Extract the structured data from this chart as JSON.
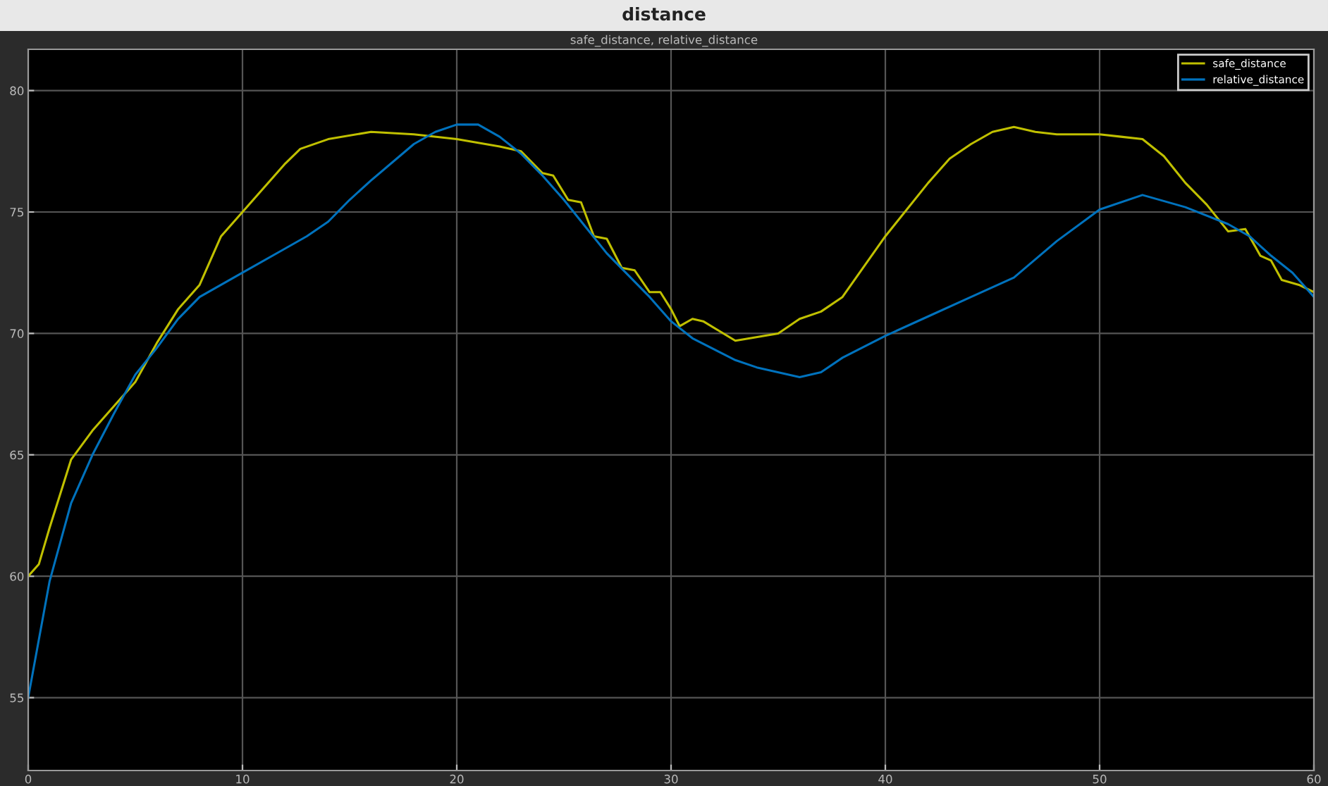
{
  "chart_data": {
    "type": "line",
    "title": "distance",
    "subtitle": "safe_distance, relative_distance",
    "xlim": [
      0,
      60
    ],
    "xticks": [
      0,
      10,
      20,
      30,
      40,
      50,
      60
    ],
    "ylim": [
      52,
      81.7
    ],
    "yticks": [
      55,
      60,
      65,
      70,
      75,
      80
    ],
    "grid": true,
    "legend": "top right",
    "line_style": "solid",
    "marker": "none",
    "series": [
      {
        "name": "safe_distance",
        "color": "#c0c000",
        "x": [
          0,
          0.5,
          1,
          1.5,
          2,
          3,
          4,
          5,
          6,
          7,
          8,
          9,
          10,
          11,
          12,
          12.7,
          14,
          16,
          18,
          20,
          22,
          23,
          24,
          24.5,
          25.2,
          25.8,
          26.4,
          27,
          27.7,
          28.3,
          29,
          29.5,
          30,
          30.4,
          31,
          31.5,
          33,
          35,
          36,
          37,
          38,
          40,
          42,
          43,
          44,
          45,
          46,
          47,
          48,
          50,
          51,
          52,
          53,
          54,
          55,
          56,
          56.8,
          57.5,
          58,
          58.5,
          59.3,
          60
        ],
        "values": [
          60,
          60.5,
          62,
          63.4,
          64.8,
          66,
          67,
          68,
          69.6,
          71,
          72,
          74,
          75,
          76,
          77,
          77.6,
          78,
          78.3,
          78.2,
          78,
          77.7,
          77.5,
          76.6,
          76.5,
          75.5,
          75.4,
          74,
          73.9,
          72.7,
          72.6,
          71.7,
          71.7,
          71,
          70.3,
          70.6,
          70.5,
          69.7,
          70,
          70.6,
          70.9,
          71.5,
          74,
          76.2,
          77.2,
          77.8,
          78.3,
          78.5,
          78.3,
          78.2,
          78.2,
          78.1,
          78,
          77.3,
          76.2,
          75.3,
          74.2,
          74.3,
          73.2,
          73,
          72.2,
          72,
          71.7
        ]
      },
      {
        "name": "relative_distance",
        "color": "#0072bd",
        "x": [
          0,
          1,
          2,
          3,
          4,
          5,
          6,
          7,
          8,
          10,
          12,
          13,
          14,
          15,
          16,
          18,
          19,
          20,
          21,
          22,
          23,
          24,
          25,
          26,
          27,
          28,
          29,
          30,
          31,
          33,
          34,
          36,
          37,
          38,
          40,
          42,
          44,
          46,
          48,
          50,
          52,
          54,
          56,
          57,
          58,
          59,
          60
        ],
        "values": [
          55,
          59.8,
          63,
          65,
          66.7,
          68.3,
          69.4,
          70.6,
          71.5,
          72.5,
          73.5,
          74,
          74.6,
          75.5,
          76.3,
          77.8,
          78.3,
          78.6,
          78.6,
          78.1,
          77.4,
          76.5,
          75.5,
          74.4,
          73.3,
          72.4,
          71.5,
          70.5,
          69.8,
          68.9,
          68.6,
          68.2,
          68.4,
          69,
          69.9,
          70.7,
          71.5,
          72.3,
          73.8,
          75.1,
          75.7,
          75.2,
          74.5,
          74,
          73.2,
          72.5,
          71.5
        ]
      }
    ]
  }
}
